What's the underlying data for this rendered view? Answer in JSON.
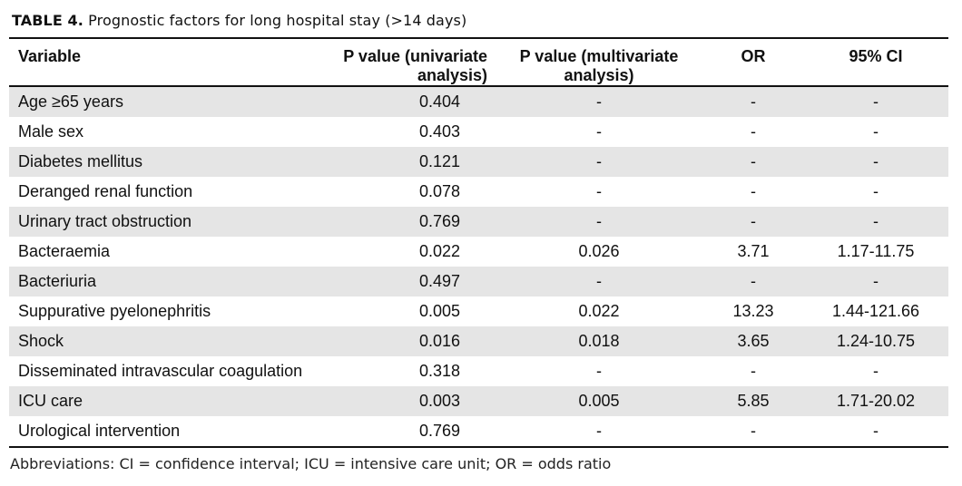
{
  "caption": {
    "label": "TABLE 4.",
    "text": "Prognostic factors for long hospital stay (>14 days)"
  },
  "table": {
    "headers": {
      "variable": "Variable",
      "p_uni_line1": "P value (univariate",
      "p_uni_line2": "analysis)",
      "p_multi_line1": "P value (multivariate",
      "p_multi_line2": "analysis)",
      "or": "OR",
      "ci": "95% CI"
    },
    "rows": [
      {
        "variable": "Age ≥65 years",
        "p_uni": "0.404",
        "p_multi": "-",
        "or": "-",
        "ci": "-"
      },
      {
        "variable": "Male sex",
        "p_uni": "0.403",
        "p_multi": "-",
        "or": "-",
        "ci": "-"
      },
      {
        "variable": "Diabetes mellitus",
        "p_uni": "0.121",
        "p_multi": "-",
        "or": "-",
        "ci": "-"
      },
      {
        "variable": "Deranged renal function",
        "p_uni": "0.078",
        "p_multi": "-",
        "or": "-",
        "ci": "-"
      },
      {
        "variable": "Urinary tract obstruction",
        "p_uni": "0.769",
        "p_multi": "-",
        "or": "-",
        "ci": "-"
      },
      {
        "variable": "Bacteraemia",
        "p_uni": "0.022",
        "p_multi": "0.026",
        "or": "3.71",
        "ci": "1.17-11.75"
      },
      {
        "variable": "Bacteriuria",
        "p_uni": "0.497",
        "p_multi": "-",
        "or": "-",
        "ci": "-"
      },
      {
        "variable": "Suppurative pyelonephritis",
        "p_uni": "0.005",
        "p_multi": "0.022",
        "or": "13.23",
        "ci": "1.44-121.66"
      },
      {
        "variable": "Shock",
        "p_uni": "0.016",
        "p_multi": "0.018",
        "or": "3.65",
        "ci": "1.24-10.75"
      },
      {
        "variable": "Disseminated intravascular coagulation",
        "p_uni": "0.318",
        "p_multi": "-",
        "or": "-",
        "ci": "-"
      },
      {
        "variable": "ICU care",
        "p_uni": "0.003",
        "p_multi": "0.005",
        "or": "5.85",
        "ci": "1.71-20.02"
      },
      {
        "variable": "Urological intervention",
        "p_uni": "0.769",
        "p_multi": "-",
        "or": "-",
        "ci": "-"
      }
    ]
  },
  "footnote": "Abbreviations: CI = confidence interval; ICU = intensive care unit; OR = odds ratio",
  "colors": {
    "stripe": "#e5e5e5",
    "rule": "#111111"
  }
}
